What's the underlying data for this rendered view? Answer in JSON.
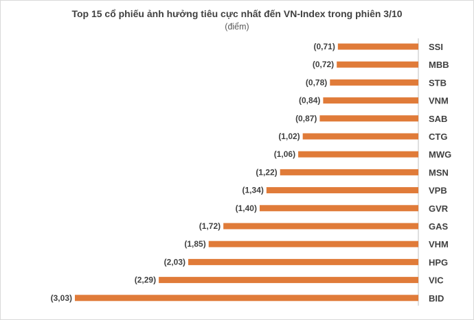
{
  "chart_data": {
    "type": "bar",
    "orientation": "horizontal",
    "title": "Top 15 cổ phiếu ảnh hưởng tiêu cực nhất đến VN-Index trong phiên 3/10",
    "subtitle": "(điểm)",
    "categories": [
      "SSI",
      "MBB",
      "STB",
      "VNM",
      "SAB",
      "CTG",
      "MWG",
      "MSN",
      "VPB",
      "GVR",
      "GAS",
      "VHM",
      "HPG",
      "VIC",
      "BID"
    ],
    "values": [
      -0.71,
      -0.72,
      -0.78,
      -0.84,
      -0.87,
      -1.02,
      -1.06,
      -1.22,
      -1.34,
      -1.4,
      -1.72,
      -1.85,
      -2.03,
      -2.29,
      -3.03
    ],
    "value_labels": [
      "(0,71)",
      "(0,72)",
      "(0,78)",
      "(0,84)",
      "(0,87)",
      "(1,02)",
      "(1,06)",
      "(1,22)",
      "(1,34)",
      "(1,40)",
      "(1,72)",
      "(1,85)",
      "(2,03)",
      "(2,29)",
      "(3,03)"
    ],
    "xlim": [
      -3.03,
      0
    ],
    "bar_color": "#E07B39",
    "axis_color": "#bfbfbf",
    "grid": false,
    "legend": "none"
  }
}
